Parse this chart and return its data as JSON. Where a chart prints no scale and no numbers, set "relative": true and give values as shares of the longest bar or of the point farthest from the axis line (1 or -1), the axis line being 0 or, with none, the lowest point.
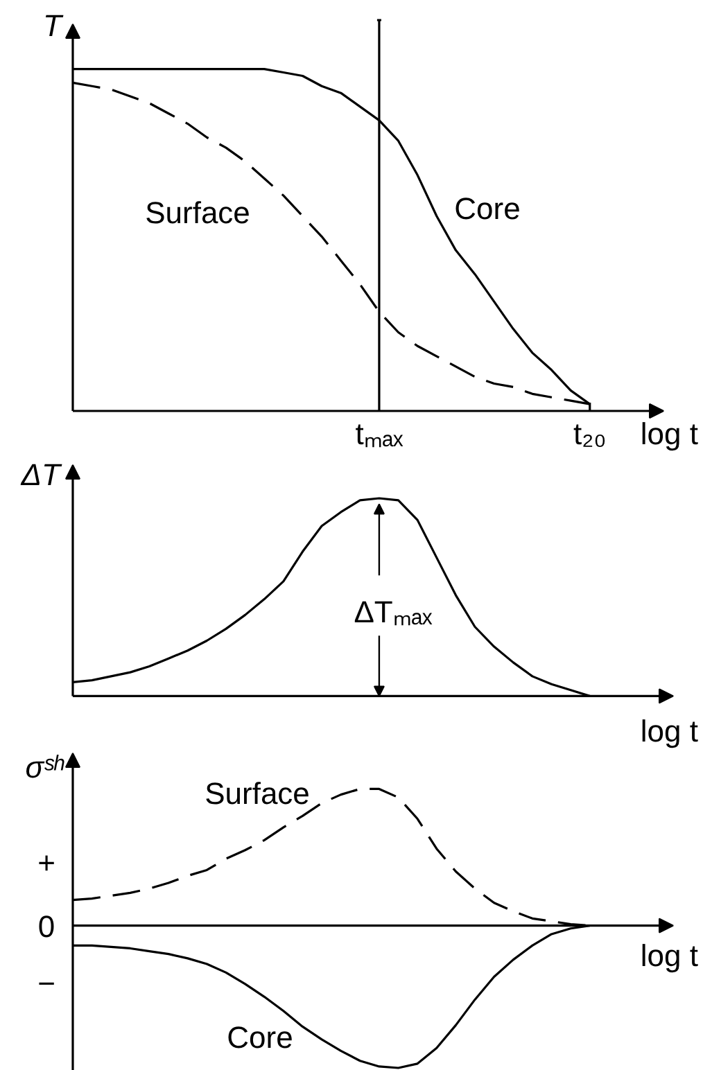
{
  "chart_data": [
    {
      "type": "line",
      "relative": true,
      "xlabel": "log t",
      "ylabel": "T",
      "tick_labels": "x",
      "categories": [
        null,
        null,
        null,
        null,
        null,
        null,
        null,
        null,
        null,
        null,
        null,
        null,
        null,
        null,
        null,
        null,
        "tₘₐₓ",
        null,
        null,
        null,
        null,
        null,
        null,
        null,
        null,
        null,
        null,
        "t₂₀"
      ],
      "series": [
        {
          "name": "Core",
          "color": "#000000",
          "line_style": "solid",
          "values": [
            1,
            1,
            1,
            1,
            1,
            1,
            1,
            1,
            1,
            1,
            1,
            0.99,
            0.98,
            0.95,
            0.93,
            0.89,
            0.85,
            0.79,
            0.69,
            0.57,
            0.47,
            0.4,
            0.32,
            0.24,
            0.17,
            0.12,
            0.06,
            0.02
          ]
        },
        {
          "name": "Surface",
          "color": "#000000",
          "line_style": "dashed",
          "values": [
            0.96,
            0.95,
            0.94,
            0.92,
            0.9,
            0.87,
            0.84,
            0.8,
            0.77,
            0.73,
            0.68,
            0.63,
            0.57,
            0.51,
            0.44,
            0.37,
            0.29,
            0.23,
            0.19,
            0.16,
            0.13,
            0.1,
            0.08,
            0.07,
            0.05,
            0.04,
            0.03,
            0.02
          ]
        }
      ],
      "ref_lines": [
        {
          "axis": "x",
          "value": "tₘₐₓ"
        }
      ]
    },
    {
      "type": "line",
      "relative": true,
      "xlabel": "log t",
      "ylabel": "ΔT",
      "categories": [
        null,
        null,
        null,
        null,
        null,
        null,
        null,
        null,
        null,
        null,
        null,
        null,
        null,
        null,
        null,
        null,
        null,
        null,
        null,
        null,
        null,
        null,
        null,
        null,
        null,
        null,
        null,
        null
      ],
      "series": [
        {
          "color": "#000000",
          "line_style": "solid",
          "values": [
            0.07,
            0.08,
            0.1,
            0.12,
            0.15,
            0.19,
            0.23,
            0.28,
            0.34,
            0.41,
            0.49,
            0.58,
            0.73,
            0.86,
            0.93,
            0.99,
            1,
            0.99,
            0.89,
            0.7,
            0.51,
            0.35,
            0.25,
            0.17,
            0.1,
            0.06,
            0.03,
            0
          ]
        }
      ],
      "annotations": [
        "ΔTₘₐₓ"
      ]
    },
    {
      "type": "line",
      "relative": true,
      "xlabel": "log t",
      "ylabel": "σˢʰ",
      "categories": [
        null,
        null,
        null,
        null,
        null,
        null,
        null,
        null,
        null,
        null,
        null,
        null,
        null,
        null,
        null,
        null,
        null,
        null,
        null,
        null,
        null,
        null,
        null,
        null,
        null,
        null,
        null,
        null
      ],
      "series": [
        {
          "name": "Surface",
          "color": "#000000",
          "line_style": "dashed",
          "values": [
            0.18,
            0.19,
            0.21,
            0.23,
            0.26,
            0.3,
            0.35,
            0.39,
            0.47,
            0.53,
            0.6,
            0.69,
            0.77,
            0.86,
            0.92,
            0.96,
            0.96,
            0.9,
            0.75,
            0.54,
            0.38,
            0.26,
            0.16,
            0.1,
            0.05,
            0.03,
            0.01,
            0
          ]
        },
        {
          "name": "Core",
          "color": "#000000",
          "line_style": "solid",
          "values": [
            -0.14,
            -0.14,
            -0.15,
            -0.16,
            -0.18,
            -0.2,
            -0.23,
            -0.27,
            -0.33,
            -0.41,
            -0.5,
            -0.6,
            -0.71,
            -0.8,
            -0.88,
            -0.95,
            -0.99,
            -1,
            -0.97,
            -0.86,
            -0.7,
            -0.52,
            -0.36,
            -0.24,
            -0.14,
            -0.06,
            -0.02,
            0
          ]
        }
      ],
      "annotations": [
        "+",
        "0",
        "−"
      ]
    }
  ]
}
